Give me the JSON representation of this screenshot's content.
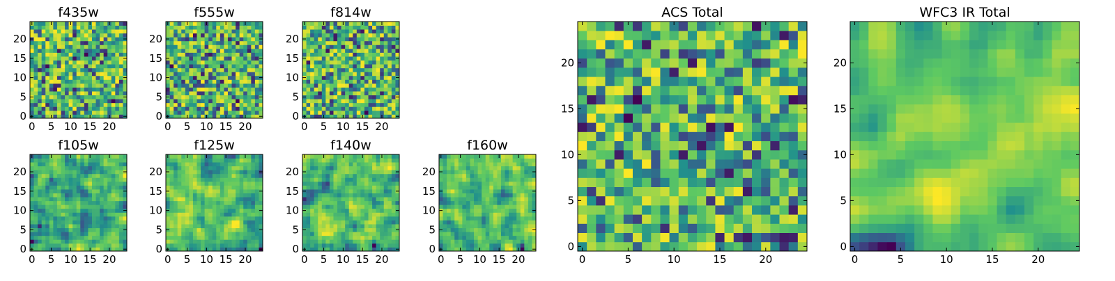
{
  "figure": {
    "description_colormap": "viridis"
  },
  "colors": {
    "viridis": [
      "#440154",
      "#3b528b",
      "#21918c",
      "#5ec962",
      "#fde725"
    ]
  },
  "chart_data": [
    {
      "type": "heatmap",
      "title": "f435w",
      "grid_size": 25,
      "xlim": [
        0,
        24
      ],
      "ylim": [
        0,
        24
      ],
      "xticks": [
        0,
        5,
        10,
        15,
        20
      ],
      "yticks": [
        0,
        5,
        10,
        15,
        20
      ],
      "seed": 11,
      "smooth": 0
    },
    {
      "type": "heatmap",
      "title": "f555w",
      "grid_size": 25,
      "xlim": [
        0,
        24
      ],
      "ylim": [
        0,
        24
      ],
      "xticks": [
        0,
        5,
        10,
        15,
        20
      ],
      "yticks": [
        0,
        5,
        10,
        15,
        20
      ],
      "seed": 23,
      "smooth": 0
    },
    {
      "type": "heatmap",
      "title": "f814w",
      "grid_size": 25,
      "xlim": [
        0,
        24
      ],
      "ylim": [
        0,
        24
      ],
      "xticks": [
        0,
        5,
        10,
        15,
        20
      ],
      "yticks": [
        0,
        5,
        10,
        15,
        20
      ],
      "seed": 37,
      "smooth": 0
    },
    {
      "type": "heatmap",
      "title": "f105w",
      "grid_size": 25,
      "xlim": [
        0,
        24
      ],
      "ylim": [
        0,
        24
      ],
      "xticks": [
        0,
        5,
        10,
        15,
        20
      ],
      "yticks": [
        0,
        5,
        10,
        15,
        20
      ],
      "seed": 41,
      "smooth": 1
    },
    {
      "type": "heatmap",
      "title": "f125w",
      "grid_size": 25,
      "xlim": [
        0,
        24
      ],
      "ylim": [
        0,
        24
      ],
      "xticks": [
        0,
        5,
        10,
        15,
        20
      ],
      "yticks": [
        0,
        5,
        10,
        15,
        20
      ],
      "seed": 53,
      "smooth": 1
    },
    {
      "type": "heatmap",
      "title": "f140w",
      "grid_size": 25,
      "xlim": [
        0,
        24
      ],
      "ylim": [
        0,
        24
      ],
      "xticks": [
        0,
        5,
        10,
        15,
        20
      ],
      "yticks": [
        0,
        5,
        10,
        15,
        20
      ],
      "seed": 67,
      "smooth": 1
    },
    {
      "type": "heatmap",
      "title": "f160w",
      "grid_size": 25,
      "xlim": [
        0,
        24
      ],
      "ylim": [
        0,
        24
      ],
      "xticks": [
        0,
        5,
        10,
        15,
        20
      ],
      "yticks": [
        0,
        5,
        10,
        15,
        20
      ],
      "seed": 79,
      "smooth": 1
    },
    {
      "type": "heatmap",
      "title": "ACS Total",
      "grid_size": 25,
      "xlim": [
        0,
        24
      ],
      "ylim": [
        0,
        24
      ],
      "xticks": [
        0,
        5,
        10,
        15,
        20
      ],
      "yticks": [
        0,
        5,
        10,
        15,
        20
      ],
      "seed": 83,
      "smooth": 0
    },
    {
      "type": "heatmap",
      "title": "WFC3 IR Total",
      "grid_size": 25,
      "xlim": [
        0,
        24
      ],
      "ylim": [
        0,
        24
      ],
      "xticks": [
        0,
        5,
        10,
        15,
        20
      ],
      "yticks": [
        0,
        5,
        10,
        15,
        20
      ],
      "seed": 97,
      "smooth": 2
    }
  ]
}
